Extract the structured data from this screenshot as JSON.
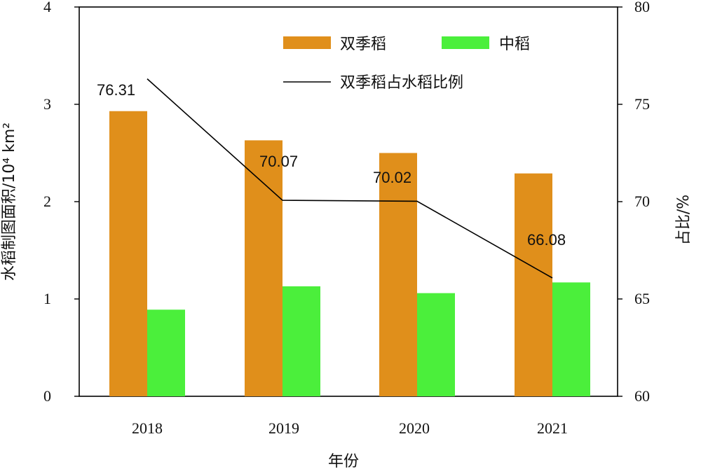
{
  "chart_data": {
    "type": "bar",
    "categories": [
      "2018",
      "2019",
      "2020",
      "2021"
    ],
    "series": [
      {
        "name": "双季稻",
        "axis": "left",
        "kind": "bar",
        "color": "#e08f1b",
        "values": [
          2.93,
          2.63,
          2.5,
          2.29
        ]
      },
      {
        "name": "中稻",
        "axis": "left",
        "kind": "bar",
        "color": "#4bef3b",
        "values": [
          0.89,
          1.13,
          1.06,
          1.17
        ]
      },
      {
        "name": "双季稻占水稻比例",
        "axis": "right",
        "kind": "line",
        "color": "#000000",
        "values": [
          76.31,
          70.07,
          70.02,
          66.08
        ]
      }
    ],
    "data_labels": [
      "76.31",
      "70.07",
      "70.02",
      "66.08"
    ],
    "xlabel": "年份",
    "ylabel": "水稻制图面积/10⁴ km²",
    "y2label": "占比/%",
    "ylim": [
      0,
      4
    ],
    "y2lim": [
      60,
      80
    ],
    "yticks": [
      "0",
      "1",
      "2",
      "3",
      "4"
    ],
    "y2ticks": [
      "60",
      "65",
      "70",
      "75",
      "80"
    ],
    "grid": false,
    "legend_position": "top-center"
  }
}
